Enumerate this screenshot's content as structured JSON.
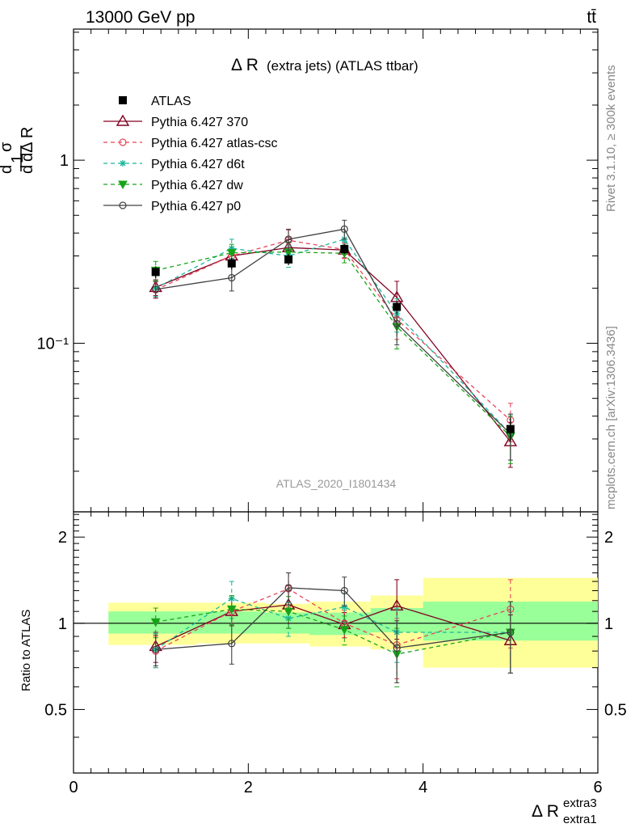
{
  "header": {
    "energy_label": "13000 GeV pp",
    "process_label": "tt̄"
  },
  "side_labels": {
    "rivet": "Rivet 3.1.10, ≥ 300k events",
    "mcplots": "mcplots.cern.ch [arXiv:1306.3436]"
  },
  "watermark": "ATLAS_2020_I1801434",
  "chart_data": [
    {
      "type": "line",
      "title_main": "Δ R",
      "title_sub": "(extra jets) (ATLAS ttbar)",
      "ylabel": "dσ/dΔR (1/σ)",
      "xlabel": "Δ R",
      "xlabel_sup": "extra3",
      "xlabel_sub": "extra1",
      "xlim": [
        0,
        6
      ],
      "ylim": [
        0.012,
        5.2
      ],
      "yscale": "log",
      "x_ticks": [
        0,
        2,
        4,
        6
      ],
      "y_tick_labels": [
        "1",
        "10⁻¹"
      ],
      "y_tick_values": [
        1,
        0.1
      ],
      "data": {
        "name": "ATLAS",
        "x": [
          0.94,
          1.81,
          2.46,
          3.1,
          3.7,
          5.0
        ],
        "y": [
          0.245,
          0.273,
          0.287,
          0.327,
          0.158,
          0.034
        ],
        "err": [
          0.018,
          0.02,
          0.02,
          0.02,
          0.012,
          0.005
        ]
      },
      "series": [
        {
          "name": "Pythia 6.427 370",
          "color": "#800020",
          "dash": "solid",
          "marker": "triangle",
          "x": [
            0.94,
            1.81,
            2.46,
            3.1,
            3.7,
            5.0
          ],
          "y": [
            0.202,
            0.3,
            0.333,
            0.323,
            0.178,
            0.029
          ],
          "err": [
            0.02,
            0.03,
            0.035,
            0.03,
            0.04,
            0.008
          ]
        },
        {
          "name": "Pythia 6.427 atlas-csc",
          "color": "#e8455a",
          "dash": "dashed",
          "marker": "circle-open",
          "x": [
            0.94,
            1.81,
            2.46,
            3.1,
            3.7,
            5.0
          ],
          "y": [
            0.196,
            0.3,
            0.365,
            0.325,
            0.135,
            0.038
          ],
          "err": [
            0.02,
            0.03,
            0.05,
            0.035,
            0.03,
            0.009
          ]
        },
        {
          "name": "Pythia 6.427 d6t",
          "color": "#1ab89a",
          "dash": "dashed",
          "marker": "star",
          "x": [
            0.94,
            1.81,
            2.46,
            3.1,
            3.7,
            5.0
          ],
          "y": [
            0.2,
            0.33,
            0.3,
            0.37,
            0.145,
            0.032
          ],
          "err": [
            0.02,
            0.04,
            0.04,
            0.035,
            0.03,
            0.009
          ]
        },
        {
          "name": "Pythia 6.427 dw",
          "color": "#17a317",
          "dash": "dashed",
          "marker": "triangle-down",
          "x": [
            0.94,
            1.81,
            2.46,
            3.1,
            3.7,
            5.0
          ],
          "y": [
            0.25,
            0.312,
            0.315,
            0.31,
            0.123,
            0.031
          ],
          "err": [
            0.03,
            0.035,
            0.04,
            0.035,
            0.03,
            0.009
          ]
        },
        {
          "name": "Pythia 6.427 p0",
          "color": "#404040",
          "dash": "solid",
          "marker": "circle-open",
          "x": [
            0.94,
            1.81,
            2.46,
            3.1,
            3.7,
            5.0
          ],
          "y": [
            0.197,
            0.228,
            0.37,
            0.42,
            0.128,
            0.032
          ],
          "err": [
            0.02,
            0.035,
            0.05,
            0.05,
            0.03,
            0.009
          ]
        }
      ],
      "legend_position": "top-left"
    },
    {
      "type": "line",
      "ylabel": "Ratio to ATLAS",
      "xlim": [
        0,
        6
      ],
      "ylim": [
        0.3,
        2.45
      ],
      "yscale": "log",
      "y_tick_labels": [
        "0.5",
        "1",
        "2"
      ],
      "y_tick_values": [
        0.5,
        1,
        2
      ],
      "bins": [
        {
          "lo": 0.4,
          "hi": 1.4,
          "inner": [
            0.92,
            1.1
          ],
          "outer": [
            0.84,
            1.18
          ]
        },
        {
          "lo": 1.4,
          "hi": 2.2,
          "inner": [
            0.92,
            1.1
          ],
          "outer": [
            0.85,
            1.18
          ]
        },
        {
          "lo": 2.2,
          "hi": 2.7,
          "inner": [
            0.92,
            1.09
          ],
          "outer": [
            0.85,
            1.17
          ]
        },
        {
          "lo": 2.7,
          "hi": 3.4,
          "inner": [
            0.91,
            1.09
          ],
          "outer": [
            0.83,
            1.19
          ]
        },
        {
          "lo": 3.4,
          "hi": 4.0,
          "inner": [
            0.93,
            1.13
          ],
          "outer": [
            0.81,
            1.25
          ]
        },
        {
          "lo": 4.0,
          "hi": 6.0,
          "inner": [
            0.87,
            1.19
          ],
          "outer": [
            0.7,
            1.44
          ]
        }
      ],
      "series": [
        {
          "name": "Pythia 6.427 370",
          "x": [
            0.94,
            1.81,
            2.46,
            3.1,
            3.7,
            5.0
          ],
          "y": [
            0.83,
            1.1,
            1.16,
            0.99,
            1.15,
            0.87
          ],
          "err": [
            0.1,
            0.12,
            0.2,
            0.1,
            0.27,
            0.2
          ]
        },
        {
          "name": "Pythia 6.427 atlas-csc",
          "x": [
            0.94,
            1.81,
            2.46,
            3.1,
            3.7,
            5.0
          ],
          "y": [
            0.8,
            1.1,
            1.32,
            1.0,
            0.84,
            1.12
          ],
          "err": [
            0.1,
            0.12,
            0.18,
            0.11,
            0.2,
            0.3
          ]
        },
        {
          "name": "Pythia 6.427 d6t",
          "x": [
            0.94,
            1.81,
            2.46,
            3.1,
            3.7,
            5.0
          ],
          "y": [
            0.81,
            1.22,
            1.04,
            1.14,
            0.93,
            0.93
          ],
          "err": [
            0.11,
            0.18,
            0.14,
            0.13,
            0.2,
            0.26
          ]
        },
        {
          "name": "Pythia 6.427 dw",
          "x": [
            0.94,
            1.81,
            2.46,
            3.1,
            3.7,
            5.0
          ],
          "y": [
            1.01,
            1.12,
            1.1,
            0.95,
            0.78,
            0.93
          ],
          "err": [
            0.12,
            0.13,
            0.14,
            0.11,
            0.18,
            0.26
          ]
        },
        {
          "name": "Pythia 6.427 p0",
          "x": [
            0.94,
            1.81,
            2.46,
            3.1,
            3.7,
            5.0
          ],
          "y": [
            0.81,
            0.85,
            1.33,
            1.3,
            0.82,
            0.93
          ],
          "err": [
            0.1,
            0.13,
            0.17,
            0.15,
            0.2,
            0.26
          ]
        }
      ]
    }
  ]
}
